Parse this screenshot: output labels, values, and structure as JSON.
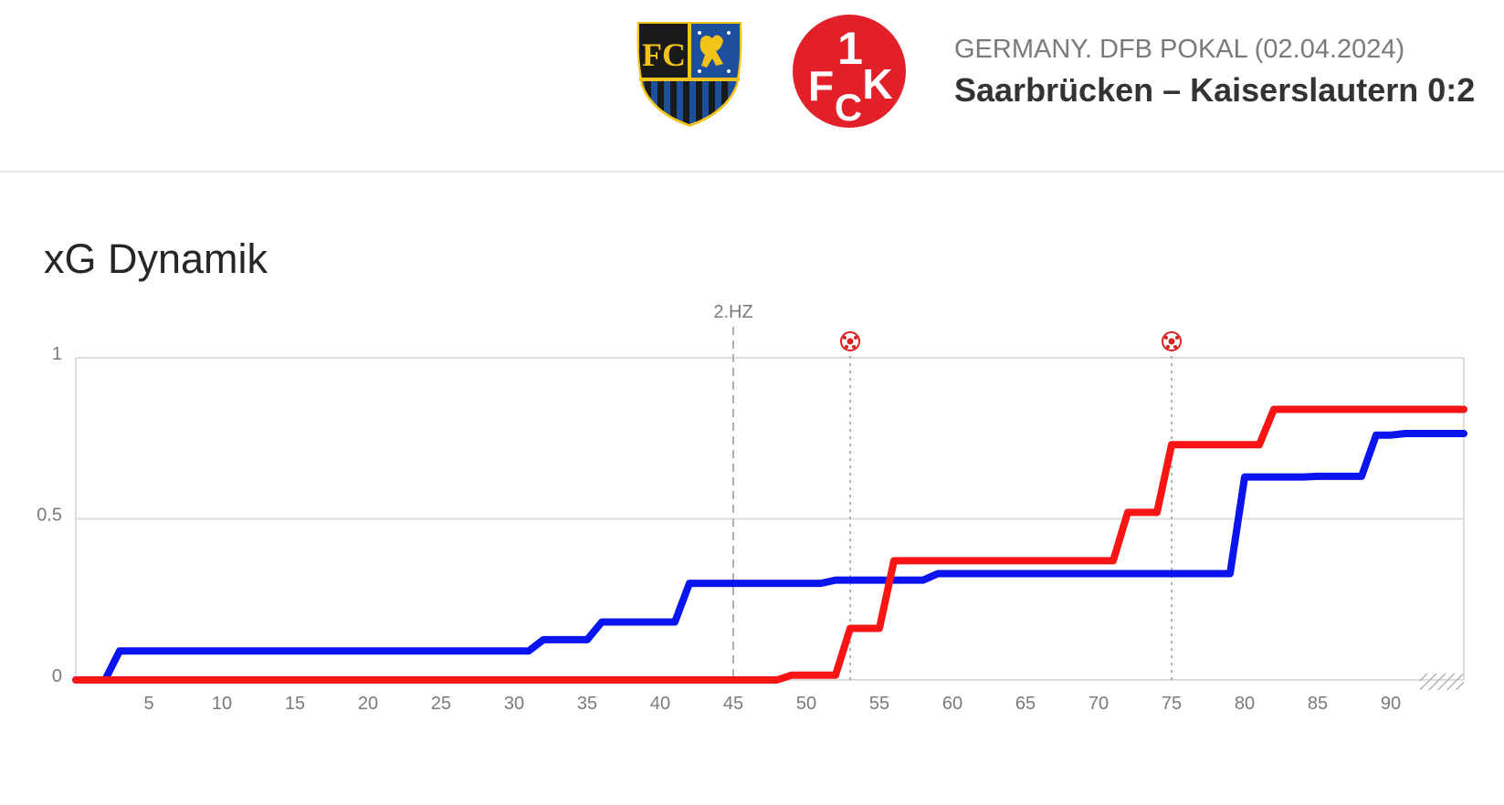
{
  "header": {
    "league": "GERMANY. DFB POKAL (02.04.2024)",
    "match": "Saarbrücken – Kaiserslautern 0:2",
    "home_logo": "saarbruecken-crest",
    "away_logo": "kaiserslautern-crest"
  },
  "section_title": "xG Dynamik",
  "chart_data": {
    "type": "line",
    "title": "xG Dynamik",
    "xlim": [
      0,
      95
    ],
    "ylim": [
      0,
      1
    ],
    "x_ticks": [
      5,
      10,
      15,
      20,
      25,
      30,
      35,
      40,
      45,
      50,
      55,
      60,
      65,
      70,
      75,
      80,
      85,
      90
    ],
    "y_ticks": [
      {
        "value": 0,
        "label": "0"
      },
      {
        "value": 0.5,
        "label": "0.5"
      },
      {
        "value": 1,
        "label": "1"
      }
    ],
    "grid": true,
    "series": [
      {
        "color": "#0a14f0",
        "points": [
          [
            0,
            0
          ],
          [
            2,
            0
          ],
          [
            3,
            0.09
          ],
          [
            31,
            0.09
          ],
          [
            32,
            0.125
          ],
          [
            35,
            0.125
          ],
          [
            36,
            0.18
          ],
          [
            41,
            0.18
          ],
          [
            42,
            0.3
          ],
          [
            51,
            0.3
          ],
          [
            52,
            0.31
          ],
          [
            58,
            0.31
          ],
          [
            59,
            0.33
          ],
          [
            79,
            0.33
          ],
          [
            80,
            0.63
          ],
          [
            84,
            0.63
          ],
          [
            85,
            0.632
          ],
          [
            88,
            0.632
          ],
          [
            89,
            0.76
          ],
          [
            90,
            0.76
          ],
          [
            91,
            0.765
          ],
          [
            95,
            0.765
          ]
        ]
      },
      {
        "color": "#fa1414",
        "points": [
          [
            0,
            0
          ],
          [
            48,
            0
          ],
          [
            49,
            0.015
          ],
          [
            52,
            0.015
          ],
          [
            53,
            0.16
          ],
          [
            55,
            0.16
          ],
          [
            56,
            0.37
          ],
          [
            71,
            0.37
          ],
          [
            72,
            0.52
          ],
          [
            74,
            0.52
          ],
          [
            75,
            0.73
          ],
          [
            81,
            0.73
          ],
          [
            82,
            0.84
          ],
          [
            95,
            0.84
          ]
        ]
      }
    ],
    "markers": [
      {
        "x": 45,
        "label": "2.HZ",
        "style": "dashed"
      },
      {
        "x": 53,
        "icon": "soccer-ball-icon",
        "style": "dotted"
      },
      {
        "x": 75,
        "icon": "soccer-ball-icon",
        "style": "dotted"
      }
    ],
    "extra_time_hatch": [
      92,
      95
    ]
  }
}
